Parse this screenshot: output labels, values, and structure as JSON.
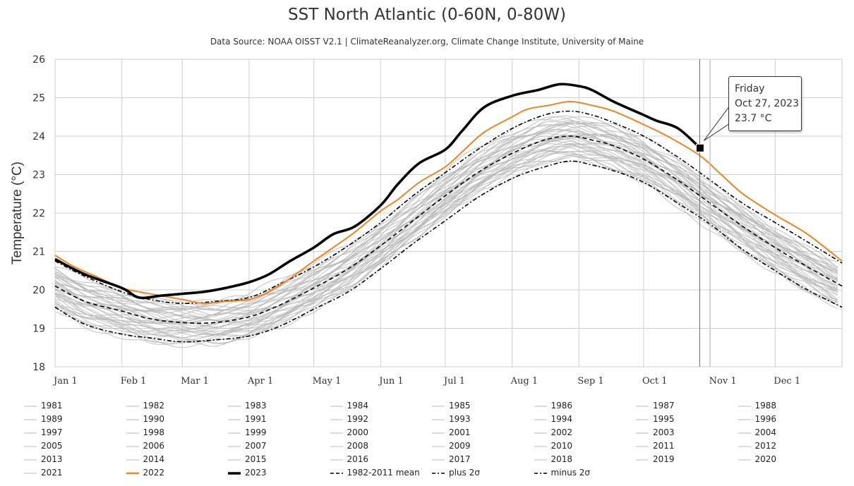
{
  "title": "SST North Atlantic (0-60N, 0-80W)",
  "subtitle": "Data Source: NOAA OISST V2.1 | ClimateReanalyzer.org, Climate Change Institute, University of Maine",
  "tooltip": {
    "day": "Friday",
    "date": "Oct 27, 2023",
    "value": "23.7 °C"
  },
  "colors": {
    "historic": "#b9b9b9",
    "y2022": "#ef8522",
    "y2023": "#000000",
    "stats": "#000000"
  },
  "chart_data": {
    "type": "line",
    "ylabel": "Temperature (°C)",
    "ylim": [
      18,
      26
    ],
    "yticks": [
      "18",
      "19",
      "20",
      "21",
      "22",
      "23",
      "24",
      "25",
      "26"
    ],
    "xlim_days": [
      1,
      366
    ],
    "month_ticks": [
      {
        "label": "Jan 1",
        "day": 1
      },
      {
        "label": "Feb 1",
        "day": 32
      },
      {
        "label": "Mar 1",
        "day": 60
      },
      {
        "label": "Apr 1",
        "day": 91
      },
      {
        "label": "May 1",
        "day": 121
      },
      {
        "label": "Jun 1",
        "day": 152
      },
      {
        "label": "Jul 1",
        "day": 182
      },
      {
        "label": "Aug 1",
        "day": 213
      },
      {
        "label": "Sep 1",
        "day": 244
      },
      {
        "label": "Oct 1",
        "day": 274
      },
      {
        "label": "Nov 1",
        "day": 305
      },
      {
        "label": "Dec 1",
        "day": 335
      }
    ],
    "grid": true,
    "legend_position": "bottom",
    "crosshair_day": 300,
    "series": [
      {
        "name": "2023",
        "style": "thick",
        "points": [
          [
            1,
            20.8
          ],
          [
            15,
            20.4
          ],
          [
            32,
            20.05
          ],
          [
            40,
            19.8
          ],
          [
            50,
            19.85
          ],
          [
            60,
            19.9
          ],
          [
            70,
            19.95
          ],
          [
            80,
            20.05
          ],
          [
            91,
            20.2
          ],
          [
            100,
            20.4
          ],
          [
            110,
            20.75
          ],
          [
            121,
            21.1
          ],
          [
            130,
            21.45
          ],
          [
            140,
            21.65
          ],
          [
            152,
            22.2
          ],
          [
            160,
            22.75
          ],
          [
            170,
            23.3
          ],
          [
            182,
            23.65
          ],
          [
            190,
            24.15
          ],
          [
            200,
            24.75
          ],
          [
            213,
            25.05
          ],
          [
            225,
            25.2
          ],
          [
            235,
            25.35
          ],
          [
            244,
            25.3
          ],
          [
            250,
            25.2
          ],
          [
            260,
            24.9
          ],
          [
            274,
            24.55
          ],
          [
            280,
            24.4
          ],
          [
            290,
            24.2
          ],
          [
            300,
            23.7
          ]
        ]
      },
      {
        "name": "2022",
        "style": "orange",
        "points": [
          [
            1,
            20.9
          ],
          [
            10,
            20.6
          ],
          [
            20,
            20.35
          ],
          [
            32,
            20.05
          ],
          [
            40,
            19.95
          ],
          [
            50,
            19.85
          ],
          [
            60,
            19.75
          ],
          [
            70,
            19.65
          ],
          [
            80,
            19.7
          ],
          [
            91,
            19.75
          ],
          [
            100,
            19.95
          ],
          [
            110,
            20.3
          ],
          [
            121,
            20.75
          ],
          [
            130,
            21.1
          ],
          [
            140,
            21.5
          ],
          [
            152,
            22.05
          ],
          [
            160,
            22.35
          ],
          [
            170,
            22.8
          ],
          [
            182,
            23.2
          ],
          [
            190,
            23.6
          ],
          [
            200,
            24.1
          ],
          [
            213,
            24.5
          ],
          [
            220,
            24.7
          ],
          [
            230,
            24.8
          ],
          [
            240,
            24.9
          ],
          [
            250,
            24.8
          ],
          [
            260,
            24.65
          ],
          [
            274,
            24.3
          ],
          [
            285,
            24.0
          ],
          [
            300,
            23.5
          ],
          [
            310,
            23.0
          ],
          [
            320,
            22.5
          ],
          [
            335,
            21.95
          ],
          [
            350,
            21.45
          ],
          [
            366,
            20.75
          ]
        ]
      },
      {
        "name": "1982-2011 mean",
        "style": "dashed",
        "points": [
          [
            1,
            20.1
          ],
          [
            15,
            19.7
          ],
          [
            32,
            19.45
          ],
          [
            45,
            19.25
          ],
          [
            60,
            19.15
          ],
          [
            75,
            19.15
          ],
          [
            91,
            19.3
          ],
          [
            105,
            19.6
          ],
          [
            121,
            20.05
          ],
          [
            137,
            20.55
          ],
          [
            152,
            21.15
          ],
          [
            167,
            21.8
          ],
          [
            182,
            22.45
          ],
          [
            197,
            23.05
          ],
          [
            213,
            23.55
          ],
          [
            228,
            23.9
          ],
          [
            240,
            24.0
          ],
          [
            250,
            23.9
          ],
          [
            260,
            23.75
          ],
          [
            274,
            23.4
          ],
          [
            290,
            22.85
          ],
          [
            305,
            22.25
          ],
          [
            320,
            21.65
          ],
          [
            335,
            21.1
          ],
          [
            350,
            20.6
          ],
          [
            366,
            20.1
          ]
        ]
      },
      {
        "name": "plus 2σ",
        "style": "dashdot",
        "points": [
          [
            1,
            20.75
          ],
          [
            15,
            20.35
          ],
          [
            32,
            19.95
          ],
          [
            45,
            19.75
          ],
          [
            60,
            19.65
          ],
          [
            75,
            19.7
          ],
          [
            91,
            19.8
          ],
          [
            105,
            20.15
          ],
          [
            121,
            20.6
          ],
          [
            137,
            21.15
          ],
          [
            152,
            21.75
          ],
          [
            167,
            22.45
          ],
          [
            182,
            23.05
          ],
          [
            197,
            23.65
          ],
          [
            213,
            24.2
          ],
          [
            228,
            24.55
          ],
          [
            240,
            24.65
          ],
          [
            250,
            24.55
          ],
          [
            260,
            24.35
          ],
          [
            274,
            24.0
          ],
          [
            290,
            23.45
          ],
          [
            305,
            22.85
          ],
          [
            320,
            22.25
          ],
          [
            335,
            21.75
          ],
          [
            350,
            21.25
          ],
          [
            366,
            20.7
          ]
        ]
      },
      {
        "name": "minus 2σ",
        "style": "dashdot",
        "points": [
          [
            1,
            19.55
          ],
          [
            15,
            19.1
          ],
          [
            32,
            18.85
          ],
          [
            45,
            18.75
          ],
          [
            60,
            18.65
          ],
          [
            75,
            18.7
          ],
          [
            91,
            18.8
          ],
          [
            105,
            19.05
          ],
          [
            121,
            19.5
          ],
          [
            137,
            19.95
          ],
          [
            152,
            20.55
          ],
          [
            167,
            21.2
          ],
          [
            182,
            21.8
          ],
          [
            197,
            22.4
          ],
          [
            213,
            22.9
          ],
          [
            228,
            23.2
          ],
          [
            240,
            23.35
          ],
          [
            250,
            23.25
          ],
          [
            260,
            23.1
          ],
          [
            274,
            22.8
          ],
          [
            290,
            22.25
          ],
          [
            305,
            21.7
          ],
          [
            320,
            21.05
          ],
          [
            335,
            20.5
          ],
          [
            350,
            20.0
          ],
          [
            366,
            19.55
          ]
        ]
      }
    ],
    "historic_years": [
      "1981",
      "1982",
      "1983",
      "1984",
      "1985",
      "1986",
      "1987",
      "1988",
      "1989",
      "1990",
      "1991",
      "1992",
      "1993",
      "1994",
      "1995",
      "1996",
      "1997",
      "1998",
      "1999",
      "2000",
      "2001",
      "2002",
      "2003",
      "2004",
      "2005",
      "2006",
      "2007",
      "2008",
      "2009",
      "2010",
      "2011",
      "2012",
      "2013",
      "2014",
      "2015",
      "2016",
      "2017",
      "2018",
      "2019",
      "2020",
      "2021"
    ]
  },
  "legend": {
    "items": [
      {
        "label": "1981",
        "style": "gray"
      },
      {
        "label": "1982",
        "style": "gray"
      },
      {
        "label": "1983",
        "style": "gray"
      },
      {
        "label": "1984",
        "style": "gray"
      },
      {
        "label": "1985",
        "style": "gray"
      },
      {
        "label": "1986",
        "style": "gray"
      },
      {
        "label": "1987",
        "style": "gray"
      },
      {
        "label": "1988",
        "style": "gray"
      },
      {
        "label": "1989",
        "style": "gray"
      },
      {
        "label": "1990",
        "style": "gray"
      },
      {
        "label": "1991",
        "style": "gray"
      },
      {
        "label": "1992",
        "style": "gray"
      },
      {
        "label": "1993",
        "style": "gray"
      },
      {
        "label": "1994",
        "style": "gray"
      },
      {
        "label": "1995",
        "style": "gray"
      },
      {
        "label": "1996",
        "style": "gray"
      },
      {
        "label": "1997",
        "style": "gray"
      },
      {
        "label": "1998",
        "style": "gray"
      },
      {
        "label": "1999",
        "style": "gray"
      },
      {
        "label": "2000",
        "style": "gray"
      },
      {
        "label": "2001",
        "style": "gray"
      },
      {
        "label": "2002",
        "style": "gray"
      },
      {
        "label": "2003",
        "style": "gray"
      },
      {
        "label": "2004",
        "style": "gray"
      },
      {
        "label": "2005",
        "style": "gray"
      },
      {
        "label": "2006",
        "style": "gray"
      },
      {
        "label": "2007",
        "style": "gray"
      },
      {
        "label": "2008",
        "style": "gray"
      },
      {
        "label": "2009",
        "style": "gray"
      },
      {
        "label": "2010",
        "style": "gray"
      },
      {
        "label": "2011",
        "style": "gray"
      },
      {
        "label": "2012",
        "style": "gray"
      },
      {
        "label": "2013",
        "style": "gray"
      },
      {
        "label": "2014",
        "style": "gray"
      },
      {
        "label": "2015",
        "style": "gray"
      },
      {
        "label": "2016",
        "style": "gray"
      },
      {
        "label": "2017",
        "style": "gray"
      },
      {
        "label": "2018",
        "style": "gray"
      },
      {
        "label": "2019",
        "style": "gray"
      },
      {
        "label": "2020",
        "style": "gray"
      },
      {
        "label": "2021",
        "style": "gray"
      },
      {
        "label": "2022",
        "style": "orange"
      },
      {
        "label": "2023",
        "style": "thick"
      },
      {
        "label": "1982-2011 mean",
        "style": "dashed"
      },
      {
        "label": "plus 2σ",
        "style": "dashdot"
      },
      {
        "label": "minus 2σ",
        "style": "dashdot"
      }
    ]
  }
}
